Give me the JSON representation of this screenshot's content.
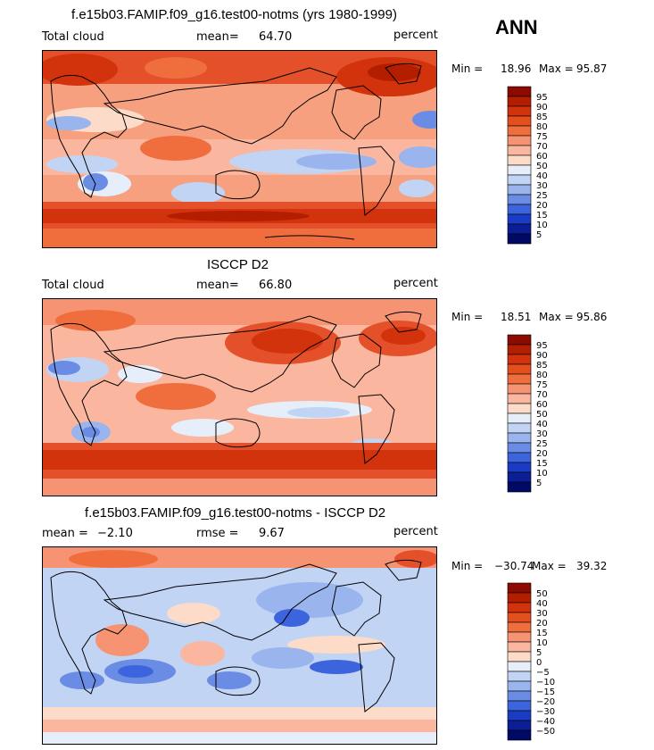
{
  "season": "ANN",
  "panels": [
    {
      "title": "f.e15b03.FAMIP.f09_g16.test00-notms (yrs 1980-1999)",
      "left_label": "Total cloud",
      "stat_label": "mean=",
      "stat_value": "64.70",
      "units": "percent",
      "min_label": "Min =",
      "min_value": "18.96",
      "max_label": "Max =",
      "max_value": "95.87"
    },
    {
      "title": "ISCCP D2",
      "left_label": "Total cloud",
      "stat_label": "mean=",
      "stat_value": "66.80",
      "units": "percent",
      "min_label": "Min =",
      "min_value": "18.51",
      "max_label": "Max =",
      "max_value": "95.86"
    },
    {
      "title": "f.e15b03.FAMIP.f09_g16.test00-notms - ISCCP D2",
      "left_label": "mean =",
      "left_value": "−2.10",
      "stat_label": "rmse =",
      "stat_value": "9.67",
      "units": "percent",
      "min_label": "Min =",
      "min_value": "−30.74",
      "max_label": "Max =",
      "max_value": "39.32"
    }
  ],
  "chart_data": [
    {
      "type": "heatmap",
      "title": "f.e15b03.FAMIP.f09_g16.test00-notms (yrs 1980-1999)",
      "variable": "Total cloud",
      "units": "percent",
      "mean": 64.7,
      "min": 18.96,
      "max": 95.87,
      "colorbar_levels": [
        95,
        90,
        85,
        80,
        75,
        70,
        60,
        50,
        40,
        30,
        25,
        20,
        15,
        10,
        5
      ],
      "colorbar_colors": [
        "#8c0a00",
        "#b41e00",
        "#d2330c",
        "#e44f1e",
        "#f06e3e",
        "#f69372",
        "#fab69e",
        "#fcdcc8",
        "#e6eefa",
        "#c2d4f4",
        "#9ab4ee",
        "#6a8ce4",
        "#3c64dc",
        "#1a3cc4",
        "#0c1e96",
        "#000a64"
      ]
    },
    {
      "type": "heatmap",
      "title": "ISCCP D2",
      "variable": "Total cloud",
      "units": "percent",
      "mean": 66.8,
      "min": 18.51,
      "max": 95.86,
      "colorbar_levels": [
        95,
        90,
        85,
        80,
        75,
        70,
        60,
        50,
        40,
        30,
        25,
        20,
        15,
        10,
        5
      ],
      "colorbar_colors": [
        "#8c0a00",
        "#b41e00",
        "#d2330c",
        "#e44f1e",
        "#f06e3e",
        "#f69372",
        "#fab69e",
        "#fcdcc8",
        "#e6eefa",
        "#c2d4f4",
        "#9ab4ee",
        "#6a8ce4",
        "#3c64dc",
        "#1a3cc4",
        "#0c1e96",
        "#000a64"
      ]
    },
    {
      "type": "heatmap",
      "title": "f.e15b03.FAMIP.f09_g16.test00-notms - ISCCP D2",
      "units": "percent",
      "mean": -2.1,
      "rmse": 9.67,
      "min": -30.74,
      "max": 39.32,
      "colorbar_levels": [
        50,
        40,
        30,
        20,
        15,
        10,
        5,
        0,
        -5,
        -10,
        -15,
        -20,
        -30,
        -40,
        -50
      ],
      "colorbar_colors": [
        "#8c0a00",
        "#b41e00",
        "#d2330c",
        "#e44f1e",
        "#f06e3e",
        "#f69372",
        "#fab69e",
        "#fcdcc8",
        "#e6eefa",
        "#c2d4f4",
        "#9ab4ee",
        "#6a8ce4",
        "#3c64dc",
        "#1a3cc4",
        "#0c1e96",
        "#000a64"
      ]
    }
  ]
}
